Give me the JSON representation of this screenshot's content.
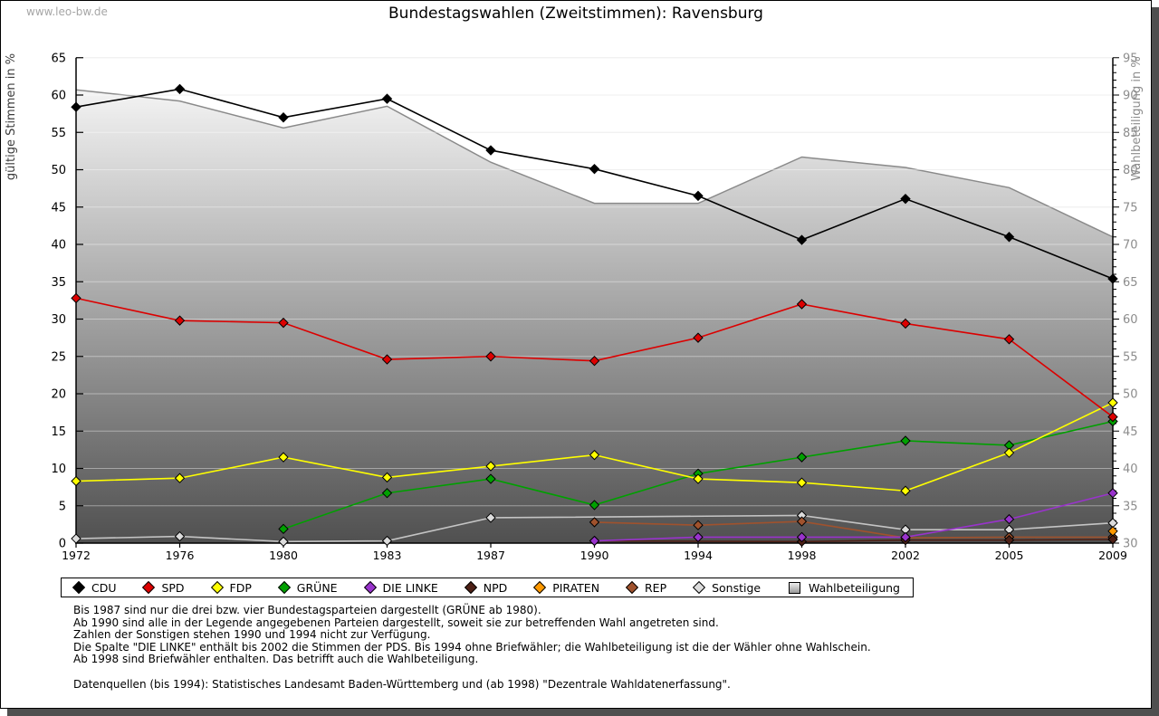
{
  "watermark": "www.leo-bw.de",
  "title": "Bundestagswahlen (Zweitstimmen): Ravensburg",
  "left_axis": {
    "label": "gültige Stimmen in %",
    "min": 0,
    "max": 65,
    "step": 5
  },
  "right_axis": {
    "label": "Wahlbeteiligung in %",
    "min": 30,
    "max": 95,
    "step": 5
  },
  "chart_data": {
    "type": "line",
    "title": "Bundestagswahlen (Zweitstimmen): Ravensburg",
    "categories": [
      "1972",
      "1976",
      "1980",
      "1983",
      "1987",
      "1990",
      "1994",
      "1998",
      "2002",
      "2005",
      "2009"
    ],
    "xlabel": "",
    "ylabel_left": "gültige Stimmen in %",
    "ylabel_right": "Wahlbeteiligung in %",
    "ylim_left": [
      0,
      65
    ],
    "ylim_right": [
      30,
      95
    ],
    "grid": true,
    "legend_position": "bottom",
    "series": [
      {
        "name": "Wahlbeteiligung",
        "axis": "right",
        "style": "area",
        "color": "#8a8a8a",
        "values": [
          90.7,
          89.2,
          85.6,
          88.5,
          81.0,
          75.5,
          75.5,
          81.7,
          80.3,
          77.6,
          71.0
        ]
      },
      {
        "name": "Sonstige",
        "axis": "left",
        "style": "line",
        "color": "#c4c4c4",
        "marker_fill": "#dcdcdc",
        "values": [
          0.6,
          0.9,
          0.2,
          0.3,
          3.4,
          null,
          null,
          3.7,
          1.8,
          1.8,
          2.7
        ]
      },
      {
        "name": "REP",
        "axis": "left",
        "style": "line",
        "color": "#a0522d",
        "marker_fill": "#a0522d",
        "values": [
          null,
          null,
          null,
          null,
          null,
          2.8,
          2.4,
          2.9,
          0.7,
          0.8,
          0.8
        ]
      },
      {
        "name": "NPD",
        "axis": "left",
        "style": "line",
        "color": "#4d2016",
        "marker_fill": "#4d2016",
        "values": [
          null,
          null,
          null,
          null,
          null,
          0.3,
          null,
          0.2,
          0.4,
          0.4,
          0.5
        ]
      },
      {
        "name": "PIRATEN",
        "axis": "left",
        "style": "line",
        "color": "#ff9900",
        "marker_fill": "#ff9900",
        "values": [
          null,
          null,
          null,
          null,
          null,
          null,
          null,
          null,
          null,
          null,
          1.6
        ]
      },
      {
        "name": "DIE LINKE",
        "axis": "left",
        "style": "line",
        "color": "#9933cc",
        "marker_fill": "#9933cc",
        "values": [
          null,
          null,
          null,
          null,
          null,
          0.3,
          0.8,
          0.8,
          0.8,
          3.2,
          6.7
        ]
      },
      {
        "name": "GRÜNE",
        "axis": "left",
        "style": "line",
        "color": "#00a000",
        "marker_fill": "#00a000",
        "values": [
          null,
          null,
          1.9,
          6.7,
          8.6,
          5.1,
          9.3,
          11.5,
          13.7,
          13.1,
          16.3
        ]
      },
      {
        "name": "FDP",
        "axis": "left",
        "style": "line",
        "color": "#ffff00",
        "marker_fill": "#ffff00",
        "values": [
          8.3,
          8.7,
          11.5,
          8.8,
          10.3,
          11.8,
          8.6,
          8.1,
          7.0,
          12.1,
          18.8
        ]
      },
      {
        "name": "SPD",
        "axis": "left",
        "style": "line",
        "color": "#dc0000",
        "marker_fill": "#dc0000",
        "values": [
          32.8,
          29.8,
          29.5,
          24.6,
          25.0,
          24.4,
          27.5,
          32.0,
          29.4,
          27.3,
          16.9
        ]
      },
      {
        "name": "CDU",
        "axis": "left",
        "style": "line",
        "color": "#000000",
        "marker_fill": "#000000",
        "values": [
          58.4,
          60.8,
          57.0,
          59.5,
          52.6,
          50.1,
          46.5,
          40.6,
          46.1,
          41.0,
          35.4
        ]
      }
    ]
  },
  "legend": {
    "items": [
      {
        "label": "CDU",
        "color": "#000000",
        "shape": "diamond"
      },
      {
        "label": "SPD",
        "color": "#dc0000",
        "shape": "diamond"
      },
      {
        "label": "FDP",
        "color": "#ffff00",
        "shape": "diamond"
      },
      {
        "label": "GRÜNE",
        "color": "#00a000",
        "shape": "diamond"
      },
      {
        "label": "DIE LINKE",
        "color": "#9933cc",
        "shape": "diamond"
      },
      {
        "label": "NPD",
        "color": "#4d2016",
        "shape": "diamond"
      },
      {
        "label": "PIRATEN",
        "color": "#ff9900",
        "shape": "diamond"
      },
      {
        "label": "REP",
        "color": "#a0522d",
        "shape": "diamond"
      },
      {
        "label": "Sonstige",
        "color": "#dcdcdc",
        "shape": "diamond"
      },
      {
        "label": "Wahlbeteiligung",
        "color": "#b8b8b8",
        "shape": "square"
      }
    ]
  },
  "footnotes": [
    "Bis 1987 sind nur die drei bzw. vier Bundestagsparteien dargestellt (GRÜNE ab 1980).",
    "Ab 1990 sind alle in der Legende angegebenen Parteien dargestellt, soweit sie zur betreffenden Wahl angetreten sind.",
    "Zahlen der Sonstigen stehen 1990 und 1994 nicht zur Verfügung.",
    "Die Spalte \"DIE LINKE\" enthält bis 2002 die Stimmen der PDS. Bis 1994 ohne Briefwähler; die Wahlbeteiligung ist die der Wähler ohne Wahlschein.",
    "Ab 1998 sind Briefwähler enthalten. Das betrifft auch die Wahlbeteiligung."
  ],
  "source": "Datenquellen (bis 1994): Statistisches Landesamt Baden-Württemberg und (ab 1998) \"Dezentrale Wahldatenerfassung\"."
}
